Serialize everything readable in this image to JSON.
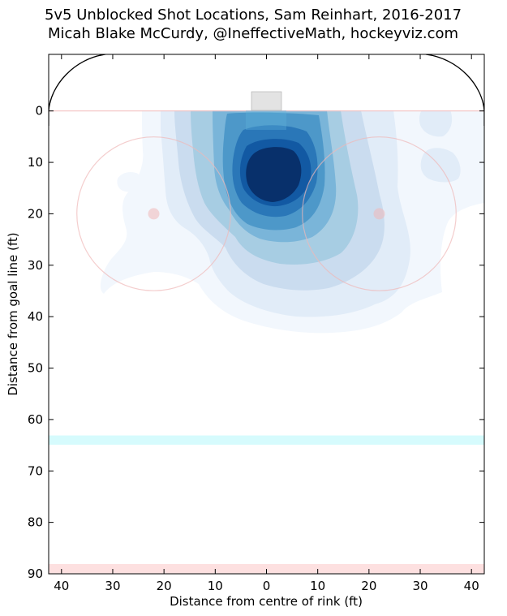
{
  "chart_data": {
    "type": "heatmap",
    "title": "5v5 Unblocked Shot Locations, Sam Reinhart, 2016-2017",
    "subtitle": "Micah Blake McCurdy, @IneffectiveMath, hockeyviz.com",
    "xlabel": "Distance from centre of rink (ft)",
    "ylabel": "Distance from goal line (ft)",
    "xlim": [
      -42.5,
      42.5
    ],
    "ylim": [
      -11,
      90
    ],
    "x_ticks": [
      {
        "value": -40,
        "label": "40"
      },
      {
        "value": -30,
        "label": "30"
      },
      {
        "value": -20,
        "label": "20"
      },
      {
        "value": -10,
        "label": "10"
      },
      {
        "value": 0,
        "label": "0"
      },
      {
        "value": 10,
        "label": "10"
      },
      {
        "value": 20,
        "label": "20"
      },
      {
        "value": 30,
        "label": "30"
      },
      {
        "value": 40,
        "label": "40"
      }
    ],
    "y_ticks": [
      {
        "value": 0,
        "label": "0"
      },
      {
        "value": 10,
        "label": "10"
      },
      {
        "value": 20,
        "label": "20"
      },
      {
        "value": 30,
        "label": "30"
      },
      {
        "value": 40,
        "label": "40"
      },
      {
        "value": 50,
        "label": "50"
      },
      {
        "value": 60,
        "label": "60"
      },
      {
        "value": 70,
        "label": "70"
      },
      {
        "value": 80,
        "label": "80"
      },
      {
        "value": 90,
        "label": "90"
      }
    ],
    "density_peak": {
      "x": 2,
      "y": 12
    },
    "colors": {
      "levels": [
        "#f2f7fd",
        "#e1ecf8",
        "#cadcef",
        "#a7cde3",
        "#7ab5d9",
        "#4d98c9",
        "#2a77b8",
        "#1259a3",
        "#08306b"
      ],
      "goal_line": "#f4c3c3",
      "faceoff": "#f0b8b8",
      "blue_line": "#d6fbfd",
      "red_line": "#fde0e0",
      "crease": "#5fb3d9",
      "net": "#e0e0e0"
    },
    "rink": {
      "goal_line_y": 0,
      "faceoff_circles": [
        {
          "x": -22,
          "y": 20,
          "radius": 15
        },
        {
          "x": 22,
          "y": 20,
          "radius": 15
        }
      ],
      "blue_line_y": 64,
      "red_line_y": 89
    }
  }
}
